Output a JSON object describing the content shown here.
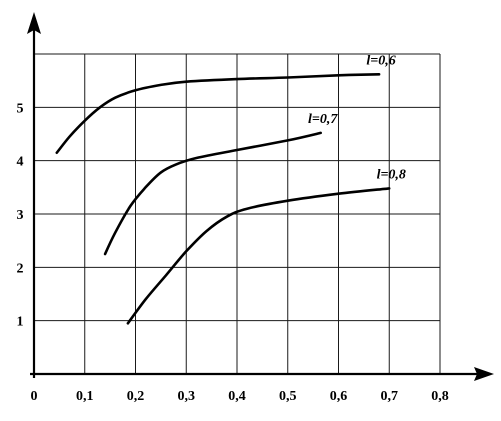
{
  "chart_data": {
    "type": "line",
    "title": "",
    "xlabel": "",
    "ylabel": "",
    "xlim": [
      0,
      0.8
    ],
    "ylim": [
      0,
      6
    ],
    "grid": true,
    "x_ticks": [
      {
        "value": 0,
        "label": "0"
      },
      {
        "value": 0.1,
        "label": "0,1"
      },
      {
        "value": 0.2,
        "label": "0,2"
      },
      {
        "value": 0.3,
        "label": "0,3"
      },
      {
        "value": 0.4,
        "label": "0,4"
      },
      {
        "value": 0.5,
        "label": "0,5"
      },
      {
        "value": 0.6,
        "label": "0,6"
      },
      {
        "value": 0.7,
        "label": "0,7"
      },
      {
        "value": 0.8,
        "label": "0,8"
      }
    ],
    "y_ticks": [
      {
        "value": 1,
        "label": "1"
      },
      {
        "value": 2,
        "label": "2"
      },
      {
        "value": 3,
        "label": "3"
      },
      {
        "value": 4,
        "label": "4"
      },
      {
        "value": 5,
        "label": "5"
      }
    ],
    "series": [
      {
        "name": "l=0,6",
        "x": [
          0.045,
          0.07,
          0.1,
          0.13,
          0.16,
          0.2,
          0.25,
          0.3,
          0.4,
          0.5,
          0.6,
          0.68
        ],
        "y": [
          4.15,
          4.45,
          4.75,
          5.0,
          5.18,
          5.32,
          5.42,
          5.48,
          5.53,
          5.56,
          5.6,
          5.62
        ]
      },
      {
        "name": "l=0,7",
        "x": [
          0.14,
          0.16,
          0.19,
          0.22,
          0.25,
          0.28,
          0.32,
          0.4,
          0.5,
          0.565
        ],
        "y": [
          2.25,
          2.65,
          3.15,
          3.5,
          3.78,
          3.93,
          4.05,
          4.2,
          4.38,
          4.52
        ]
      },
      {
        "name": "l=0,8",
        "x": [
          0.185,
          0.22,
          0.26,
          0.3,
          0.34,
          0.38,
          0.42,
          0.5,
          0.6,
          0.7
        ],
        "y": [
          0.95,
          1.4,
          1.85,
          2.3,
          2.68,
          2.95,
          3.1,
          3.25,
          3.38,
          3.48
        ]
      }
    ]
  }
}
